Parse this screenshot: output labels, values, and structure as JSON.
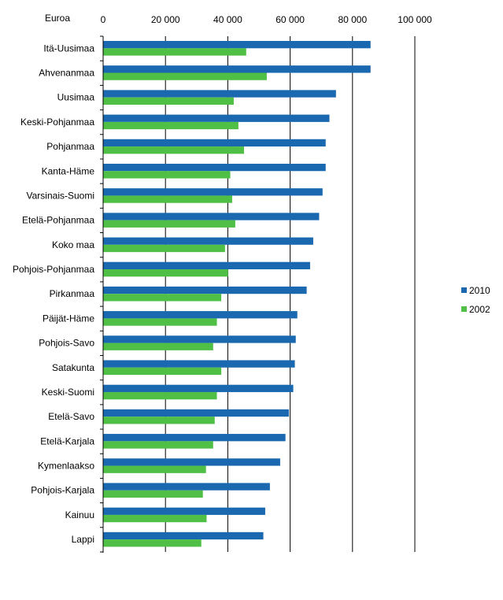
{
  "chart_data": {
    "type": "bar",
    "orientation": "horizontal",
    "unit_label": "Euroa",
    "xlim": [
      0,
      100000
    ],
    "x_ticks": [
      0,
      20000,
      40000,
      60000,
      80000,
      100000
    ],
    "x_tick_labels": [
      "0",
      "20 000",
      "40 000",
      "60 000",
      "80 000",
      "100 000"
    ],
    "grid": "vertical",
    "legend_position": "right",
    "categories": [
      "Itä-Uusimaa",
      "Ahvenanmaa",
      "Uusimaa",
      "Keski-Pohjanmaa",
      "Pohjanmaa",
      "Kanta-Häme",
      "Varsinais-Suomi",
      "Etelä-Pohjanmaa",
      "Koko maa",
      "Pohjois-Pohjanmaa",
      "Pirkanmaa",
      "Päijät-Häme",
      "Pohjois-Savo",
      "Satakunta",
      "Keski-Suomi",
      "Etelä-Savo",
      "Etelä-Karjala",
      "Kymenlaakso",
      "Pohjois-Karjala",
      "Kainuu",
      "Lappi"
    ],
    "series": [
      {
        "name": "2010",
        "color": "#1a69b0",
        "values": [
          85800,
          85800,
          74700,
          72600,
          71400,
          71400,
          70400,
          69300,
          67400,
          66400,
          65300,
          62300,
          61800,
          61500,
          61000,
          59600,
          58500,
          56800,
          53500,
          52000,
          51400
        ]
      },
      {
        "name": "2002",
        "color": "#50bf45",
        "values": [
          45900,
          52500,
          41900,
          43400,
          45200,
          40800,
          41400,
          42400,
          39100,
          40100,
          37900,
          36500,
          35300,
          37900,
          36500,
          35800,
          35300,
          33000,
          32000,
          33200,
          31500
        ]
      }
    ]
  }
}
